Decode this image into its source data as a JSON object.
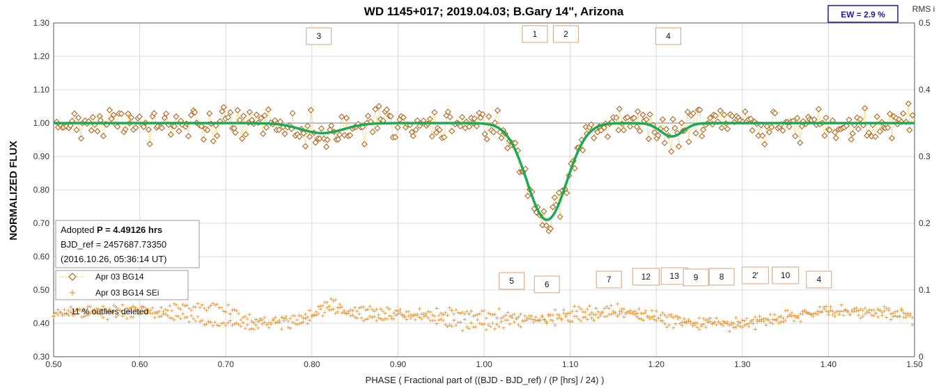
{
  "chart_data": {
    "type": "scatter",
    "title": "WD 1145+017; 2019.04.03; B.Gary 14\", Arizona",
    "xlabel": "PHASE ( Fractional part of ((BJD - BJD_ref) / (P [hrs] / 24) )",
    "ylabel": "NORMALIZED FLUX",
    "y2label": "RMS i",
    "xlim": [
      0.5,
      1.5
    ],
    "ylim": [
      0.3,
      1.3
    ],
    "y2lim": [
      0,
      0.5
    ],
    "x_ticks": [
      "0.50",
      "0.60",
      "0.70",
      "0.80",
      "0.90",
      "1.00",
      "1.10",
      "1.20",
      "1.30",
      "1.40",
      "1.50"
    ],
    "y_ticks": [
      "0.30",
      "0.40",
      "0.50",
      "0.60",
      "0.70",
      "0.80",
      "0.90",
      "1.00",
      "1.10",
      "1.20",
      "1.30"
    ],
    "y2_ticks": [
      "0",
      "0.1",
      "0.2",
      "0.3",
      "0.4",
      "0.5"
    ],
    "grid": true,
    "ew_label": "EW =  2.9 %",
    "info": {
      "period_prefix": "Adopted ",
      "period_bold": "P = 4.49126 hrs",
      "bjd_ref": "BJD_ref = 2457687.73350",
      "date": "(2016.10.26, 05:36:14 UT)"
    },
    "legend": [
      {
        "name": "Apr 03 BG14",
        "marker": "diamond",
        "color": "#b5651d"
      },
      {
        "name": "Apr 03 BG14 SEi",
        "marker": "plus",
        "color": "#e69a3c"
      }
    ],
    "outlier_note": "11 % outliers deleted",
    "colors": {
      "data": "#b5651d",
      "connector": "#f2c12e",
      "model": "#1aaa55",
      "sei": "#e69a3c",
      "baseline": "#bdbdbd",
      "box": "#d9a27a"
    },
    "model": {
      "baseline": 1.0,
      "dips": [
        {
          "label": "3",
          "center": 0.812,
          "depth": 0.03,
          "width": 0.025
        },
        {
          "label": "1/2",
          "center": 1.073,
          "depth": 0.29,
          "width": 0.023
        },
        {
          "label": "4",
          "center": 1.218,
          "depth": 0.04,
          "width": 0.013
        }
      ]
    },
    "dip_labels_top": [
      {
        "label": "3",
        "x": 0.808
      },
      {
        "label": "1",
        "x": 1.059
      },
      {
        "label": "2",
        "x": 1.095
      },
      {
        "label": "4",
        "x": 1.214
      }
    ],
    "dip_labels_bottom": [
      {
        "label": "5",
        "x": 1.032
      },
      {
        "label": "6",
        "x": 1.073
      },
      {
        "label": "7",
        "x": 1.145
      },
      {
        "label": "12",
        "x": 1.188
      },
      {
        "label": "13",
        "x": 1.221
      },
      {
        "label": "9",
        "x": 1.246
      },
      {
        "label": "8",
        "x": 1.276
      },
      {
        "label": "2'",
        "x": 1.315
      },
      {
        "label": "10",
        "x": 1.35
      },
      {
        "label": "4",
        "x": 1.389
      }
    ]
  }
}
